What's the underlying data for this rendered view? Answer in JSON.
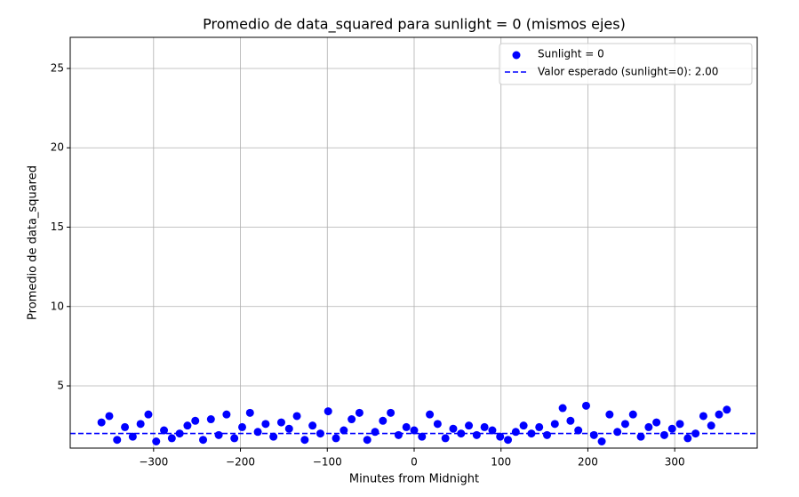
{
  "chart_data": {
    "type": "scatter",
    "title": "Promedio de data_squared para sunlight = 0 (mismos ejes)",
    "x_label": "Minutes from Midnight",
    "y_label": "Promedio de data_squared",
    "x": [
      -360,
      -351,
      -342,
      -333,
      -324,
      -315,
      -306,
      -297,
      -288,
      -279,
      -270,
      -261,
      -252,
      -243,
      -234,
      -225,
      -216,
      -207,
      -198,
      -189,
      -180,
      -171,
      -162,
      -153,
      -144,
      -135,
      -126,
      -117,
      -108,
      -99,
      -90,
      -81,
      -72,
      -63,
      -54,
      -45,
      -36,
      -27,
      -18,
      -9,
      0,
      9,
      18,
      27,
      36,
      45,
      54,
      63,
      72,
      81,
      90,
      99,
      108,
      117,
      126,
      135,
      144,
      153,
      162,
      171,
      180,
      189,
      198,
      207,
      216,
      225,
      234,
      243,
      252,
      261,
      270,
      279,
      288,
      297,
      306,
      315,
      324,
      333,
      342,
      351,
      360
    ],
    "series": [
      {
        "name": "Sunlight = 0",
        "color": "#0000ff",
        "values": [
          2.7,
          3.1,
          1.6,
          2.4,
          1.8,
          2.6,
          3.2,
          1.5,
          2.2,
          1.7,
          2.0,
          2.5,
          2.8,
          1.6,
          2.9,
          1.9,
          3.2,
          1.7,
          2.4,
          3.3,
          2.1,
          2.6,
          1.8,
          2.7,
          2.3,
          3.1,
          1.6,
          2.5,
          2.0,
          3.4,
          1.7,
          2.2,
          2.9,
          3.3,
          1.6,
          2.1,
          2.8,
          3.3,
          1.9,
          2.4,
          2.2,
          1.8,
          3.2,
          2.6,
          1.7,
          2.3,
          2.0,
          2.5,
          1.9,
          2.4,
          2.2,
          1.8,
          1.6,
          2.1,
          2.5,
          2.0,
          2.4,
          1.9,
          2.6,
          3.6,
          2.8,
          2.2,
          3.75,
          1.9,
          1.5,
          3.2,
          2.1,
          2.6,
          3.2,
          1.8,
          2.4,
          2.7,
          1.9,
          2.3,
          2.6,
          1.7,
          2.0,
          3.1,
          2.5,
          3.2,
          3.5
        ]
      }
    ],
    "reference_line": {
      "label": "Valor esperado (sunlight=0): 2.00",
      "value": 2.0,
      "color": "#0000ff",
      "style": "dashed"
    },
    "xlim": [
      -396,
      395
    ],
    "ylim": [
      1.08,
      26.96
    ],
    "xticks": [
      {
        "value": -300,
        "label": "−300"
      },
      {
        "value": -200,
        "label": "−200"
      },
      {
        "value": -100,
        "label": "−100"
      },
      0,
      100,
      200,
      300
    ],
    "yticks": [
      5,
      10,
      15,
      20,
      25
    ],
    "grid": true,
    "legend": "upper right"
  }
}
